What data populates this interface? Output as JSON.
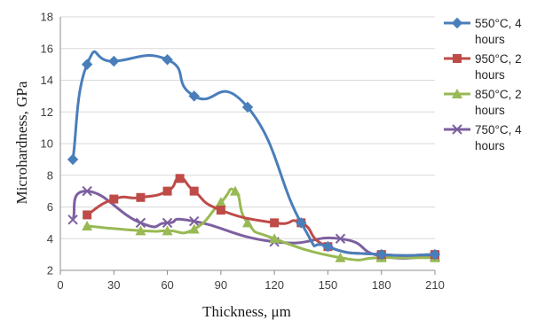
{
  "chart_data": {
    "type": "line",
    "xlabel": "Thickness, μm",
    "ylabel": "Microhardness, GPa",
    "xlim": [
      0,
      210
    ],
    "ylim": [
      2,
      18
    ],
    "xticks": [
      0,
      30,
      60,
      90,
      120,
      150,
      180,
      210
    ],
    "yticks": [
      2,
      4,
      6,
      8,
      10,
      12,
      14,
      16,
      18
    ],
    "grid": "horizontal",
    "legend_position": "right",
    "series": [
      {
        "name": "550°C, 4 hours",
        "legend_lines": [
          "550°C, 4",
          "hours"
        ],
        "color": "#4a7ebb",
        "marker": "diamond",
        "points": [
          [
            7,
            9.0
          ],
          [
            15,
            15.0
          ],
          [
            30,
            15.2
          ],
          [
            60,
            15.3
          ],
          [
            75,
            13.0
          ],
          [
            105,
            12.3
          ],
          [
            135,
            5.0
          ],
          [
            150,
            3.5
          ],
          [
            180,
            3.0
          ],
          [
            210,
            3.0
          ]
        ]
      },
      {
        "name": "950°C, 2 hours",
        "legend_lines": [
          "950°C, 2",
          "hours"
        ],
        "color": "#be4b48",
        "marker": "square",
        "points": [
          [
            15,
            5.5
          ],
          [
            30,
            6.5
          ],
          [
            45,
            6.6
          ],
          [
            60,
            7.0
          ],
          [
            67,
            7.8
          ],
          [
            75,
            7.0
          ],
          [
            90,
            5.8
          ],
          [
            120,
            5.0
          ],
          [
            135,
            5.0
          ],
          [
            150,
            3.5
          ],
          [
            180,
            3.0
          ],
          [
            210,
            3.0
          ]
        ]
      },
      {
        "name": "850°C, 2 hours",
        "legend_lines": [
          "850°C, 2",
          "hours"
        ],
        "color": "#98b954",
        "marker": "triangle",
        "points": [
          [
            15,
            4.8
          ],
          [
            45,
            4.5
          ],
          [
            60,
            4.5
          ],
          [
            75,
            4.6
          ],
          [
            90,
            6.3
          ],
          [
            98,
            7.0
          ],
          [
            105,
            5.0
          ],
          [
            120,
            4.0
          ],
          [
            157,
            2.8
          ],
          [
            180,
            2.8
          ],
          [
            210,
            2.8
          ]
        ]
      },
      {
        "name": "750°C, 4 hours",
        "legend_lines": [
          "750°C, 4",
          "hours"
        ],
        "color": "#7d60a0",
        "marker": "x",
        "points": [
          [
            7,
            5.2
          ],
          [
            15,
            7.0
          ],
          [
            45,
            5.0
          ],
          [
            60,
            5.0
          ],
          [
            75,
            5.1
          ],
          [
            120,
            3.8
          ],
          [
            157,
            4.0
          ],
          [
            180,
            2.9
          ],
          [
            210,
            2.9
          ]
        ]
      }
    ]
  }
}
